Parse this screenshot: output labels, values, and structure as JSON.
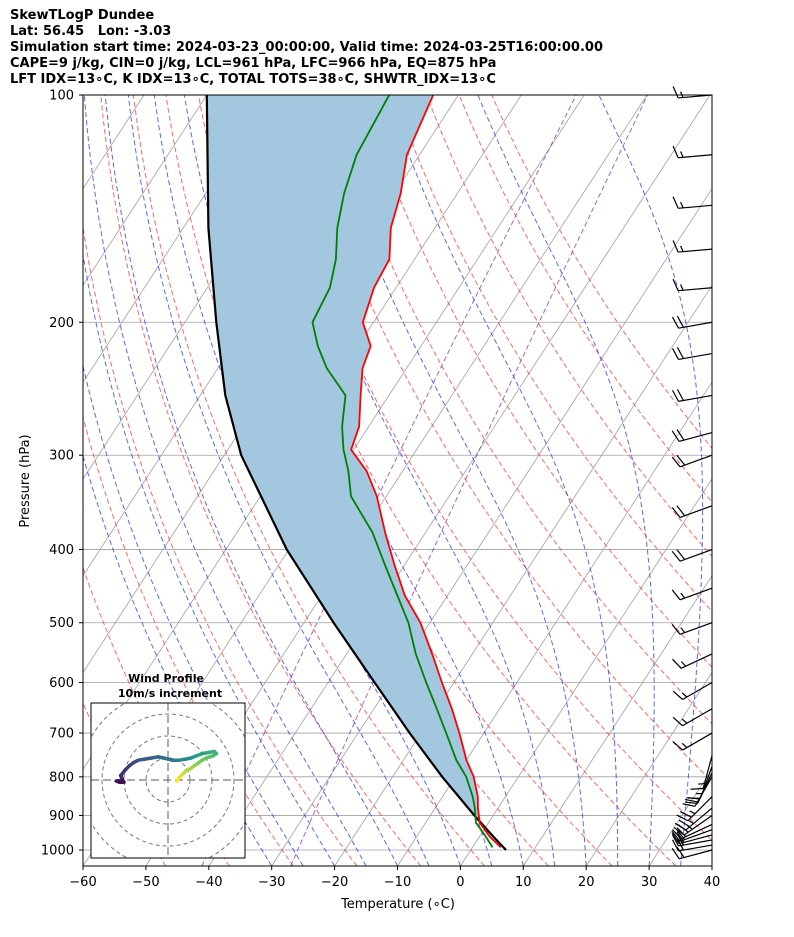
{
  "header": {
    "line1": "SkewTLogP Dundee",
    "line2": "Lat: 56.45   Lon: -3.03",
    "line3": "Simulation start time: 2024-03-23_00:00:00, Valid time: 2024-03-25T16:00:00.00",
    "line4": "CAPE=9 j/kg, CIN=0 j/kg, LCL=961 hPa, LFC=966 hPa, EQ=875 hPa",
    "line5": "LFT IDX=13∘C, K IDX=13∘C, TOTAL TOTS=38∘C, SHWTR_IDX=13∘C"
  },
  "colors": {
    "temperature": "#ff0000",
    "dewpoint": "#008000",
    "parcel": "#000000",
    "cape_fill": "#a2c7df",
    "dry_adiabat": "#ff4040",
    "moist_adiabat": "#3040ff",
    "mixing_ratio": "#8a3fbf",
    "isotherm": "#a0a0a0"
  },
  "chart_data": {
    "type": "line",
    "title": "SkewTLogP Dundee",
    "xlabel": "Temperature (∘C)",
    "ylabel": "Pressure (hPa)",
    "xlim": [
      -60,
      40
    ],
    "ylim": [
      1050,
      100
    ],
    "x_ticks": [
      "−60",
      "−50",
      "−40",
      "−30",
      "−20",
      "−10",
      "0",
      "10",
      "20",
      "30",
      "40"
    ],
    "x_tick_values": [
      -60,
      -50,
      -40,
      -30,
      -20,
      -10,
      0,
      10,
      20,
      30,
      40
    ],
    "y_ticks": [
      "100",
      "200",
      "300",
      "400",
      "500",
      "600",
      "700",
      "800",
      "900",
      "1000"
    ],
    "y_tick_values": [
      100,
      200,
      300,
      400,
      500,
      600,
      700,
      800,
      900,
      1000
    ],
    "series": [
      {
        "name": "Temperature",
        "pressure": [
          992,
          960,
          920,
          880,
          850,
          800,
          760,
          700,
          650,
          600,
          550,
          500,
          460,
          420,
          380,
          340,
          315,
          295,
          275,
          250,
          230,
          215,
          200,
          180,
          165,
          150,
          135,
          120,
          100
        ],
        "values": [
          4.5,
          1.6,
          -1.4,
          -3.2,
          -4.4,
          -7.1,
          -10.0,
          -13.9,
          -17.6,
          -21.9,
          -26.4,
          -31.5,
          -36.8,
          -41.5,
          -46.4,
          -51.5,
          -55.7,
          -60.4,
          -61.5,
          -64.5,
          -67.0,
          -68.0,
          -71.7,
          -73.5,
          -74.0,
          -77.0,
          -79.0,
          -82.0,
          -84.0
        ]
      },
      {
        "name": "Dewpoint",
        "pressure": [
          992,
          960,
          920,
          880,
          850,
          800,
          760,
          700,
          650,
          600,
          550,
          500,
          460,
          420,
          380,
          340,
          315,
          295,
          275,
          250,
          230,
          215,
          200,
          180,
          165,
          150,
          135,
          120,
          100
        ],
        "values": [
          3.2,
          1.0,
          -2.0,
          -3.7,
          -5.2,
          -8.3,
          -11.6,
          -16.0,
          -20.0,
          -24.4,
          -29.0,
          -33.4,
          -38.0,
          -43.0,
          -48.4,
          -55.6,
          -58.6,
          -61.6,
          -64.2,
          -66.9,
          -72.7,
          -76.4,
          -79.7,
          -80.5,
          -82.5,
          -85.5,
          -88.0,
          -90.0,
          -91.0
        ]
      },
      {
        "name": "Parcel",
        "pressure": [
          1000,
          961,
          900,
          800,
          700,
          600,
          500,
          400,
          300,
          250,
          200,
          150,
          100
        ],
        "values": [
          5.6,
          2.3,
          -3.0,
          -12.1,
          -21.8,
          -32.6,
          -45.3,
          -60.3,
          -77.3,
          -86.0,
          -95.0,
          -106.0,
          -120.0
        ]
      }
    ],
    "background_lines": {
      "dry_adiabats_theta_C": [
        -50,
        -40,
        -30,
        -20,
        -10,
        0,
        10,
        20,
        30,
        40,
        50,
        60,
        70,
        80,
        90,
        100,
        110
      ],
      "moist_adiabats_start_C": [
        -30,
        -25,
        -20,
        -15,
        -10,
        -5,
        0,
        5,
        10,
        15,
        20,
        25,
        30,
        35
      ],
      "mixing_ratio_g_per_kg": [
        0.1,
        0.4
      ]
    },
    "hodograph": {
      "type": "line",
      "title": "Wind Profile",
      "subtitle": "10m/s increment",
      "ring_step_m_s": 10,
      "u": [
        4.0,
        5.0,
        6.5,
        7.5,
        8.5,
        10.0,
        12.0,
        13.5,
        15.5,
        17.5,
        19.0,
        20.5,
        22.0,
        21.0,
        18.5,
        15.5,
        13.0,
        10.5,
        8.0,
        5.0,
        2.0,
        0.0,
        -2.0,
        -4.5,
        -7.5,
        -10.5,
        -13.5,
        -15.5,
        -17.5,
        -19.5,
        -21.5,
        -20.5,
        -23.5,
        -22.0,
        -20.0
      ],
      "v": [
        -0.5,
        1.0,
        2.5,
        3.5,
        4.5,
        5.0,
        6.5,
        7.5,
        9.0,
        10.0,
        10.5,
        11.0,
        12.0,
        13.0,
        12.5,
        12.0,
        11.0,
        10.0,
        9.5,
        9.0,
        9.0,
        9.5,
        10.0,
        10.5,
        10.0,
        9.5,
        9.0,
        8.0,
        6.5,
        4.5,
        2.0,
        0.0,
        -0.5,
        -1.0,
        -1.0
      ]
    },
    "wind_barbs": {
      "pressure": [
        1000,
        985,
        970,
        955,
        940,
        925,
        900,
        880,
        850,
        800,
        790,
        775,
        750,
        700,
        650,
        600,
        550,
        500,
        450,
        400,
        350,
        300,
        280,
        250,
        220,
        200,
        180,
        160,
        140,
        120,
        100
      ],
      "speed_kt": [
        20,
        20,
        20,
        20,
        20,
        20,
        25,
        25,
        25,
        20,
        20,
        15,
        15,
        15,
        15,
        15,
        15,
        15,
        15,
        20,
        20,
        20,
        20,
        20,
        20,
        20,
        15,
        15,
        15,
        15,
        15
      ],
      "direction_deg": [
        255,
        260,
        260,
        255,
        250,
        245,
        235,
        230,
        225,
        210,
        205,
        200,
        195,
        240,
        240,
        240,
        245,
        250,
        250,
        250,
        250,
        250,
        255,
        260,
        260,
        260,
        265,
        265,
        265,
        265,
        265
      ]
    }
  }
}
